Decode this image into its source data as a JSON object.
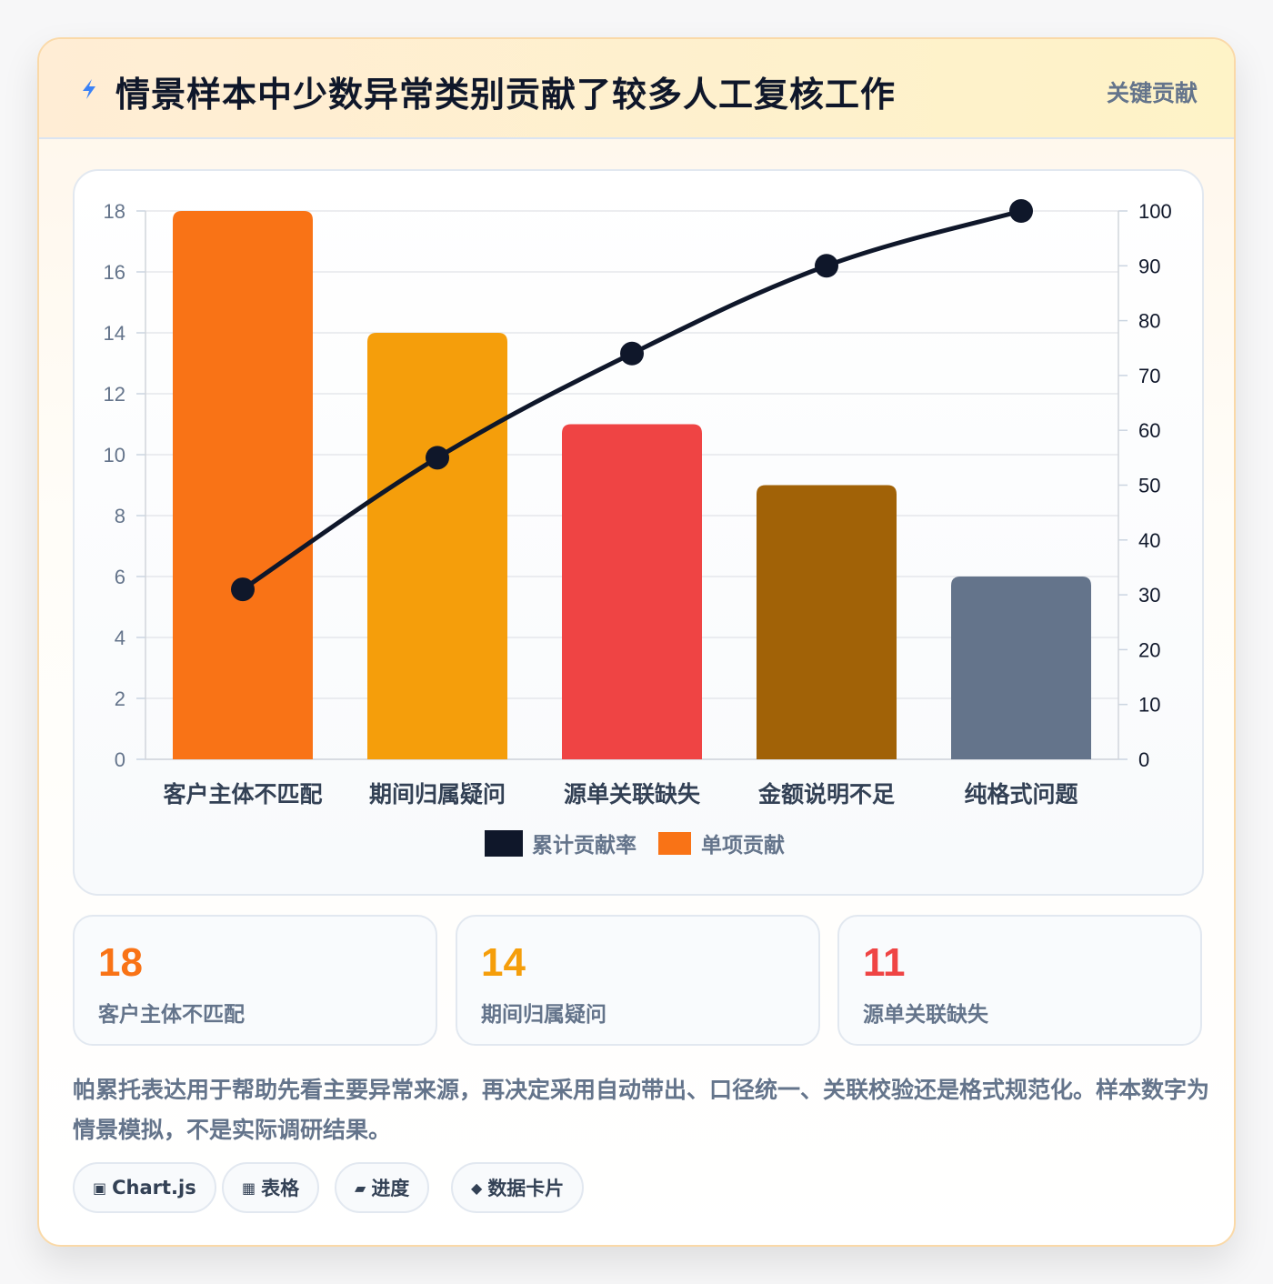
{
  "header": {
    "icon": "lightning-bolt-icon",
    "title": "情景样本中少数异常类别贡献了较多人工复核工作",
    "badge": "关键贡献"
  },
  "chart_data": {
    "type": "bar",
    "title": "",
    "categories": [
      "客户主体不匹配",
      "期间归属疑问",
      "源单关联缺失",
      "金额说明不足",
      "纯格式问题"
    ],
    "series": [
      {
        "name": "累计贡献率",
        "type": "line",
        "axis": "right",
        "color": "#0f172a",
        "values": [
          31,
          55,
          74,
          90,
          100
        ]
      },
      {
        "name": "单项贡献",
        "type": "bar",
        "axis": "left",
        "color": "#f97316",
        "values": [
          18,
          14,
          11,
          9,
          6
        ]
      }
    ],
    "bar_colors": [
      "#f97316",
      "#f59e0b",
      "#ef4444",
      "#a16207",
      "#64748b"
    ],
    "ylim": [
      0,
      18
    ],
    "yticks": [
      0,
      2,
      4,
      6,
      8,
      10,
      12,
      14,
      16,
      18
    ],
    "y2lim": [
      0,
      100
    ],
    "y2ticks": [
      0,
      10,
      20,
      30,
      40,
      50,
      60,
      70,
      80,
      90,
      100
    ],
    "xlabel": "",
    "ylabel": "",
    "grid": true,
    "legend": "bottom"
  },
  "stats": [
    {
      "value": "18",
      "label": "客户主体不匹配",
      "color": "#f97316"
    },
    {
      "value": "14",
      "label": "期间归属疑问",
      "color": "#f59e0b"
    },
    {
      "value": "11",
      "label": "源单关联缺失",
      "color": "#ef4444"
    }
  ],
  "description": "帕累托表达用于帮助先看主要异常来源，再决定采用自动带出、口径统一、关联校验还是格式规范化。样本数字为情景模拟，不是实际调研结果。",
  "tags": [
    {
      "icon": "chart-icon",
      "glyph": "▣",
      "label": "Chart.js"
    },
    {
      "icon": "table-icon",
      "glyph": "▦",
      "label": "表格"
    },
    {
      "icon": "progress-icon",
      "glyph": "▰",
      "label": "进度"
    },
    {
      "icon": "data-card-icon",
      "glyph": "◆",
      "label": "数据卡片"
    }
  ]
}
